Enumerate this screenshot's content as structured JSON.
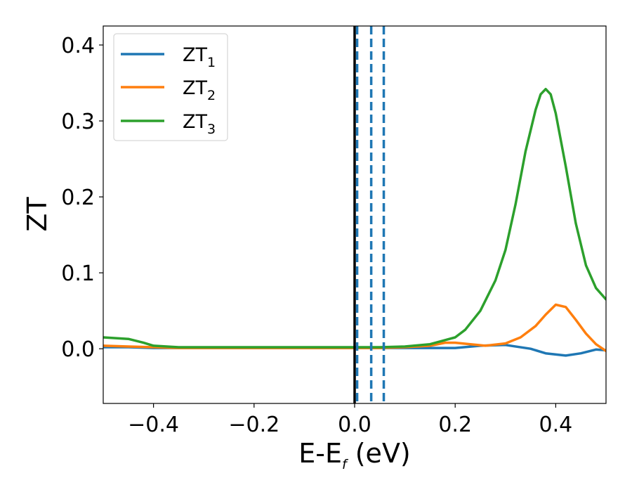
{
  "chart_data": {
    "type": "line",
    "xlabel_main": "E-E",
    "xlabel_sub": "f",
    "xlabel_unit": " (eV)",
    "ylabel": "ZT",
    "xlim": [
      -0.5,
      0.5
    ],
    "ylim": [
      -0.072,
      0.425
    ],
    "xticks": [
      -0.4,
      -0.2,
      0.0,
      0.2,
      0.4
    ],
    "xtick_labels": [
      "−0.4",
      "−0.2",
      "0.0",
      "0.2",
      "0.4"
    ],
    "yticks": [
      0.0,
      0.1,
      0.2,
      0.3,
      0.4
    ],
    "ytick_labels": [
      "0.0",
      "0.1",
      "0.2",
      "0.3",
      "0.4"
    ],
    "grid": false,
    "legend_position": "top-left",
    "vlines": [
      {
        "x": 0.0,
        "style": "solid",
        "color": "#000000"
      },
      {
        "x": 0.005,
        "style": "dashed",
        "color": "#1f77b4"
      },
      {
        "x": 0.033,
        "style": "dashed",
        "color": "#1f77b4"
      },
      {
        "x": 0.058,
        "style": "dashed",
        "color": "#1f77b4"
      }
    ],
    "series": [
      {
        "name": "ZT",
        "name_sub": "1",
        "color": "#1f77b4",
        "x": [
          -0.5,
          -0.45,
          -0.4,
          -0.35,
          -0.3,
          -0.25,
          -0.2,
          -0.15,
          -0.1,
          -0.05,
          0.0,
          0.05,
          0.1,
          0.15,
          0.2,
          0.25,
          0.3,
          0.35,
          0.38,
          0.42,
          0.45,
          0.48,
          0.5
        ],
        "values": [
          0.002,
          0.002,
          0.001,
          0.001,
          0.001,
          0.001,
          0.001,
          0.001,
          0.001,
          0.001,
          0.001,
          0.001,
          0.001,
          0.001,
          0.001,
          0.004,
          0.005,
          0.0,
          -0.006,
          -0.009,
          -0.006,
          -0.001,
          -0.002
        ]
      },
      {
        "name": "ZT",
        "name_sub": "2",
        "color": "#ff7f0e",
        "x": [
          -0.5,
          -0.45,
          -0.4,
          -0.35,
          -0.3,
          -0.25,
          -0.2,
          -0.15,
          -0.1,
          -0.05,
          0.0,
          0.05,
          0.1,
          0.15,
          0.18,
          0.2,
          0.23,
          0.26,
          0.3,
          0.33,
          0.36,
          0.38,
          0.4,
          0.42,
          0.44,
          0.46,
          0.48,
          0.5
        ],
        "values": [
          0.004,
          0.003,
          0.002,
          0.001,
          0.001,
          0.001,
          0.001,
          0.001,
          0.001,
          0.001,
          0.001,
          0.001,
          0.002,
          0.004,
          0.008,
          0.008,
          0.006,
          0.004,
          0.007,
          0.015,
          0.03,
          0.045,
          0.058,
          0.055,
          0.038,
          0.02,
          0.006,
          -0.003
        ]
      },
      {
        "name": "ZT",
        "name_sub": "3",
        "color": "#2ca02c",
        "x": [
          -0.5,
          -0.45,
          -0.42,
          -0.4,
          -0.35,
          -0.3,
          -0.2,
          -0.1,
          0.0,
          0.05,
          0.1,
          0.15,
          0.2,
          0.22,
          0.25,
          0.28,
          0.3,
          0.32,
          0.34,
          0.36,
          0.37,
          0.38,
          0.39,
          0.4,
          0.42,
          0.44,
          0.46,
          0.48,
          0.5
        ],
        "values": [
          0.015,
          0.013,
          0.008,
          0.004,
          0.002,
          0.002,
          0.002,
          0.002,
          0.002,
          0.002,
          0.003,
          0.006,
          0.015,
          0.025,
          0.05,
          0.09,
          0.13,
          0.19,
          0.26,
          0.315,
          0.335,
          0.342,
          0.335,
          0.31,
          0.24,
          0.165,
          0.11,
          0.08,
          0.065
        ]
      }
    ]
  }
}
